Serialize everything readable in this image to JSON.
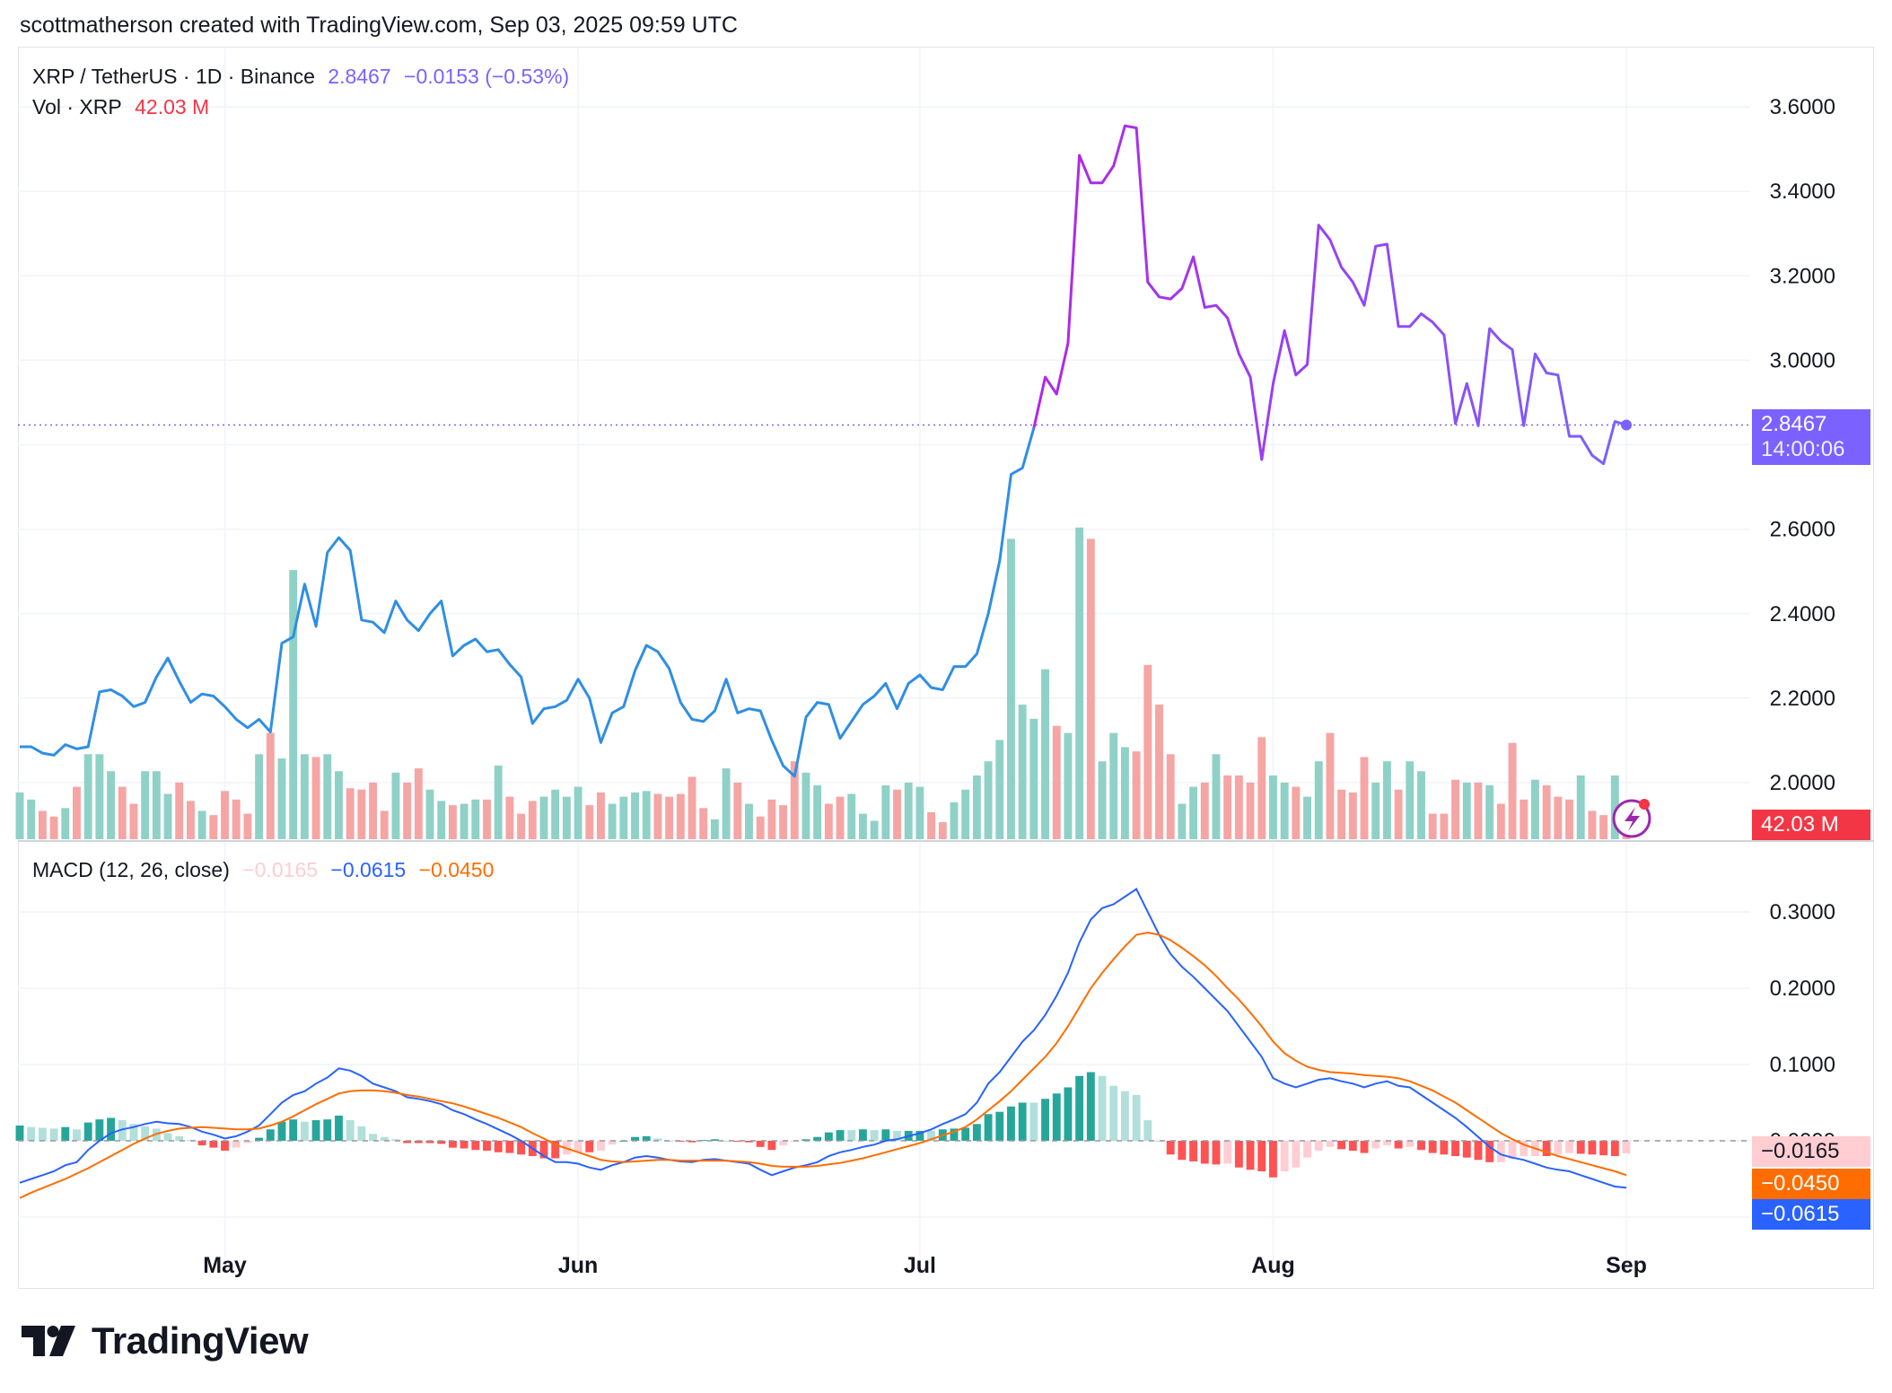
{
  "header": {
    "text": "scottmatherson created with TradingView.com, Sep 03, 2025 09:59 UTC"
  },
  "legend": {
    "symbol": "XRP / TetherUS · 1D · Binance",
    "price": "2.8467",
    "change": "−0.0153 (−0.53%)",
    "vol_label": "Vol · XRP",
    "vol_value": "42.03 M",
    "macd_label": "MACD (12, 26, close)",
    "macd_hist": "−0.0165",
    "macd_line": "−0.0615",
    "macd_signal": "−0.0450"
  },
  "price_axis": [
    "3.6000",
    "3.4000",
    "3.2000",
    "3.0000",
    "2.6000",
    "2.4000",
    "2.2000",
    "2.0000"
  ],
  "price_tag": {
    "price": "2.8467",
    "countdown": "14:00:06"
  },
  "vol_tag": "42.03 M",
  "macd_axis": [
    "0.3000",
    "0.2000",
    "0.1000",
    "0.0000"
  ],
  "macd_tags": {
    "hist": "−0.0165",
    "signal": "−0.0450",
    "macd": "−0.0615"
  },
  "time_axis": [
    "May",
    "Jun",
    "Jul",
    "Aug",
    "Sep"
  ],
  "logo": {
    "text": "TradingView"
  },
  "colors": {
    "price_blue": "#2f8ee5",
    "price_purple": "#9a36e8",
    "up": "#26a69a",
    "down": "#ef5350",
    "macd": "#2962ff",
    "signal": "#ff6d00"
  },
  "chart_data": {
    "type": "line",
    "title": "XRP / TetherUS · 1D · Binance",
    "x_range": [
      "2025-04-13",
      "2025-09-03"
    ],
    "y_range": [
      1.86,
      3.74
    ],
    "price_close": [
      2.085,
      2.085,
      2.07,
      2.065,
      2.09,
      2.08,
      2.085,
      2.215,
      2.22,
      2.205,
      2.18,
      2.19,
      2.25,
      2.295,
      2.24,
      2.19,
      2.21,
      2.205,
      2.18,
      2.15,
      2.13,
      2.15,
      2.12,
      2.33,
      2.345,
      2.47,
      2.37,
      2.545,
      2.58,
      2.55,
      2.385,
      2.38,
      2.355,
      2.43,
      2.385,
      2.36,
      2.4,
      2.43,
      2.3,
      2.325,
      2.34,
      2.31,
      2.315,
      2.28,
      2.25,
      2.14,
      2.175,
      2.18,
      2.195,
      2.245,
      2.2,
      2.095,
      2.165,
      2.18,
      2.265,
      2.325,
      2.31,
      2.27,
      2.19,
      2.15,
      2.145,
      2.17,
      2.245,
      2.165,
      2.175,
      2.17,
      2.1,
      2.04,
      2.015,
      2.155,
      2.19,
      2.185,
      2.105,
      2.145,
      2.185,
      2.205,
      2.235,
      2.175,
      2.235,
      2.255,
      2.225,
      2.22,
      2.275,
      2.275,
      2.305,
      2.4,
      2.525,
      2.73,
      2.745,
      2.84,
      2.96,
      2.92,
      3.04,
      3.485,
      3.42,
      3.42,
      3.46,
      3.555,
      3.55,
      3.185,
      3.15,
      3.145,
      3.17,
      3.245,
      3.125,
      3.13,
      3.1,
      3.015,
      2.96,
      2.765,
      2.945,
      3.07,
      2.965,
      2.99,
      3.32,
      3.285,
      3.22,
      3.185,
      3.13,
      3.27,
      3.275,
      3.08,
      3.08,
      3.11,
      3.09,
      3.06,
      2.85,
      2.945,
      2.845,
      3.075,
      3.045,
      3.025,
      2.845,
      3.015,
      2.97,
      2.965,
      2.82,
      2.82,
      2.775,
      2.755,
      2.855,
      2.8467
    ],
    "volume": [
      0.33,
      0.28,
      0.2,
      0.16,
      0.22,
      0.37,
      0.6,
      0.6,
      0.48,
      0.37,
      0.25,
      0.48,
      0.48,
      0.32,
      0.4,
      0.27,
      0.2,
      0.17,
      0.34,
      0.28,
      0.18,
      0.6,
      0.75,
      0.57,
      1.9,
      0.6,
      0.58,
      0.6,
      0.48,
      0.36,
      0.35,
      0.4,
      0.2,
      0.47,
      0.4,
      0.5,
      0.35,
      0.27,
      0.24,
      0.25,
      0.28,
      0.28,
      0.52,
      0.3,
      0.18,
      0.27,
      0.3,
      0.35,
      0.3,
      0.37,
      0.24,
      0.33,
      0.25,
      0.3,
      0.33,
      0.34,
      0.32,
      0.3,
      0.32,
      0.44,
      0.22,
      0.14,
      0.5,
      0.4,
      0.25,
      0.16,
      0.28,
      0.24,
      0.55,
      0.47,
      0.38,
      0.25,
      0.3,
      0.32,
      0.18,
      0.13,
      0.38,
      0.35,
      0.4,
      0.37,
      0.19,
      0.12,
      0.26,
      0.35,
      0.45,
      0.55,
      0.7,
      2.12,
      0.95,
      0.85,
      1.2,
      0.8,
      0.75,
      2.2,
      2.12,
      0.55,
      0.75,
      0.65,
      0.62,
      1.23,
      0.95,
      0.6,
      0.25,
      0.37,
      0.4,
      0.6,
      0.45,
      0.45,
      0.4,
      0.72,
      0.45,
      0.4,
      0.37,
      0.3,
      0.55,
      0.75,
      0.35,
      0.33,
      0.58,
      0.4,
      0.55,
      0.35,
      0.55,
      0.48,
      0.18,
      0.18,
      0.42,
      0.4,
      0.4,
      0.38,
      0.25,
      0.68,
      0.28,
      0.42,
      0.38,
      0.3,
      0.28,
      0.45,
      0.2,
      0.17,
      0.45,
      0.2
    ],
    "macd": [
      -0.055,
      -0.05,
      -0.045,
      -0.04,
      -0.032,
      -0.028,
      -0.012,
      0.0,
      0.01,
      0.015,
      0.018,
      0.022,
      0.025,
      0.023,
      0.022,
      0.018,
      0.012,
      0.008,
      0.003,
      0.006,
      0.012,
      0.02,
      0.035,
      0.05,
      0.06,
      0.065,
      0.075,
      0.083,
      0.095,
      0.092,
      0.085,
      0.075,
      0.07,
      0.065,
      0.057,
      0.055,
      0.052,
      0.048,
      0.04,
      0.035,
      0.028,
      0.022,
      0.015,
      0.008,
      0.0,
      -0.01,
      -0.02,
      -0.028,
      -0.028,
      -0.03,
      -0.035,
      -0.038,
      -0.032,
      -0.028,
      -0.022,
      -0.02,
      -0.022,
      -0.025,
      -0.027,
      -0.028,
      -0.025,
      -0.024,
      -0.026,
      -0.028,
      -0.03,
      -0.038,
      -0.045,
      -0.04,
      -0.035,
      -0.032,
      -0.028,
      -0.02,
      -0.015,
      -0.012,
      -0.008,
      -0.005,
      0.0,
      0.002,
      0.006,
      0.01,
      0.015,
      0.022,
      0.028,
      0.035,
      0.05,
      0.075,
      0.09,
      0.11,
      0.13,
      0.145,
      0.165,
      0.19,
      0.22,
      0.26,
      0.29,
      0.305,
      0.31,
      0.32,
      0.33,
      0.3,
      0.27,
      0.245,
      0.228,
      0.215,
      0.2,
      0.185,
      0.17,
      0.15,
      0.13,
      0.11,
      0.082,
      0.075,
      0.07,
      0.075,
      0.08,
      0.082,
      0.078,
      0.075,
      0.07,
      0.075,
      0.078,
      0.072,
      0.07,
      0.06,
      0.05,
      0.04,
      0.03,
      0.018,
      0.005,
      -0.008,
      -0.018,
      -0.022,
      -0.025,
      -0.03,
      -0.035,
      -0.038,
      -0.04,
      -0.045,
      -0.05,
      -0.055,
      -0.06,
      -0.0615
    ],
    "signal": [
      -0.075,
      -0.068,
      -0.062,
      -0.056,
      -0.05,
      -0.043,
      -0.036,
      -0.028,
      -0.02,
      -0.012,
      -0.004,
      0.003,
      0.009,
      0.013,
      0.016,
      0.017,
      0.018,
      0.017,
      0.016,
      0.015,
      0.015,
      0.016,
      0.02,
      0.025,
      0.032,
      0.04,
      0.048,
      0.055,
      0.062,
      0.065,
      0.066,
      0.066,
      0.065,
      0.063,
      0.06,
      0.058,
      0.055,
      0.052,
      0.049,
      0.045,
      0.04,
      0.035,
      0.03,
      0.024,
      0.018,
      0.01,
      0.003,
      -0.005,
      -0.01,
      -0.015,
      -0.02,
      -0.025,
      -0.027,
      -0.028,
      -0.027,
      -0.026,
      -0.025,
      -0.025,
      -0.026,
      -0.026,
      -0.026,
      -0.026,
      -0.026,
      -0.027,
      -0.028,
      -0.03,
      -0.033,
      -0.034,
      -0.034,
      -0.034,
      -0.033,
      -0.031,
      -0.029,
      -0.026,
      -0.023,
      -0.019,
      -0.015,
      -0.011,
      -0.007,
      -0.003,
      0.002,
      0.007,
      0.012,
      0.018,
      0.028,
      0.04,
      0.052,
      0.065,
      0.08,
      0.095,
      0.11,
      0.128,
      0.15,
      0.175,
      0.2,
      0.22,
      0.238,
      0.255,
      0.27,
      0.273,
      0.27,
      0.263,
      0.253,
      0.242,
      0.23,
      0.216,
      0.2,
      0.185,
      0.168,
      0.15,
      0.13,
      0.115,
      0.105,
      0.097,
      0.093,
      0.09,
      0.089,
      0.088,
      0.086,
      0.085,
      0.084,
      0.082,
      0.078,
      0.072,
      0.066,
      0.058,
      0.05,
      0.04,
      0.03,
      0.02,
      0.01,
      0.002,
      -0.005,
      -0.01,
      -0.015,
      -0.02,
      -0.024,
      -0.028,
      -0.032,
      -0.036,
      -0.04,
      -0.045
    ]
  }
}
